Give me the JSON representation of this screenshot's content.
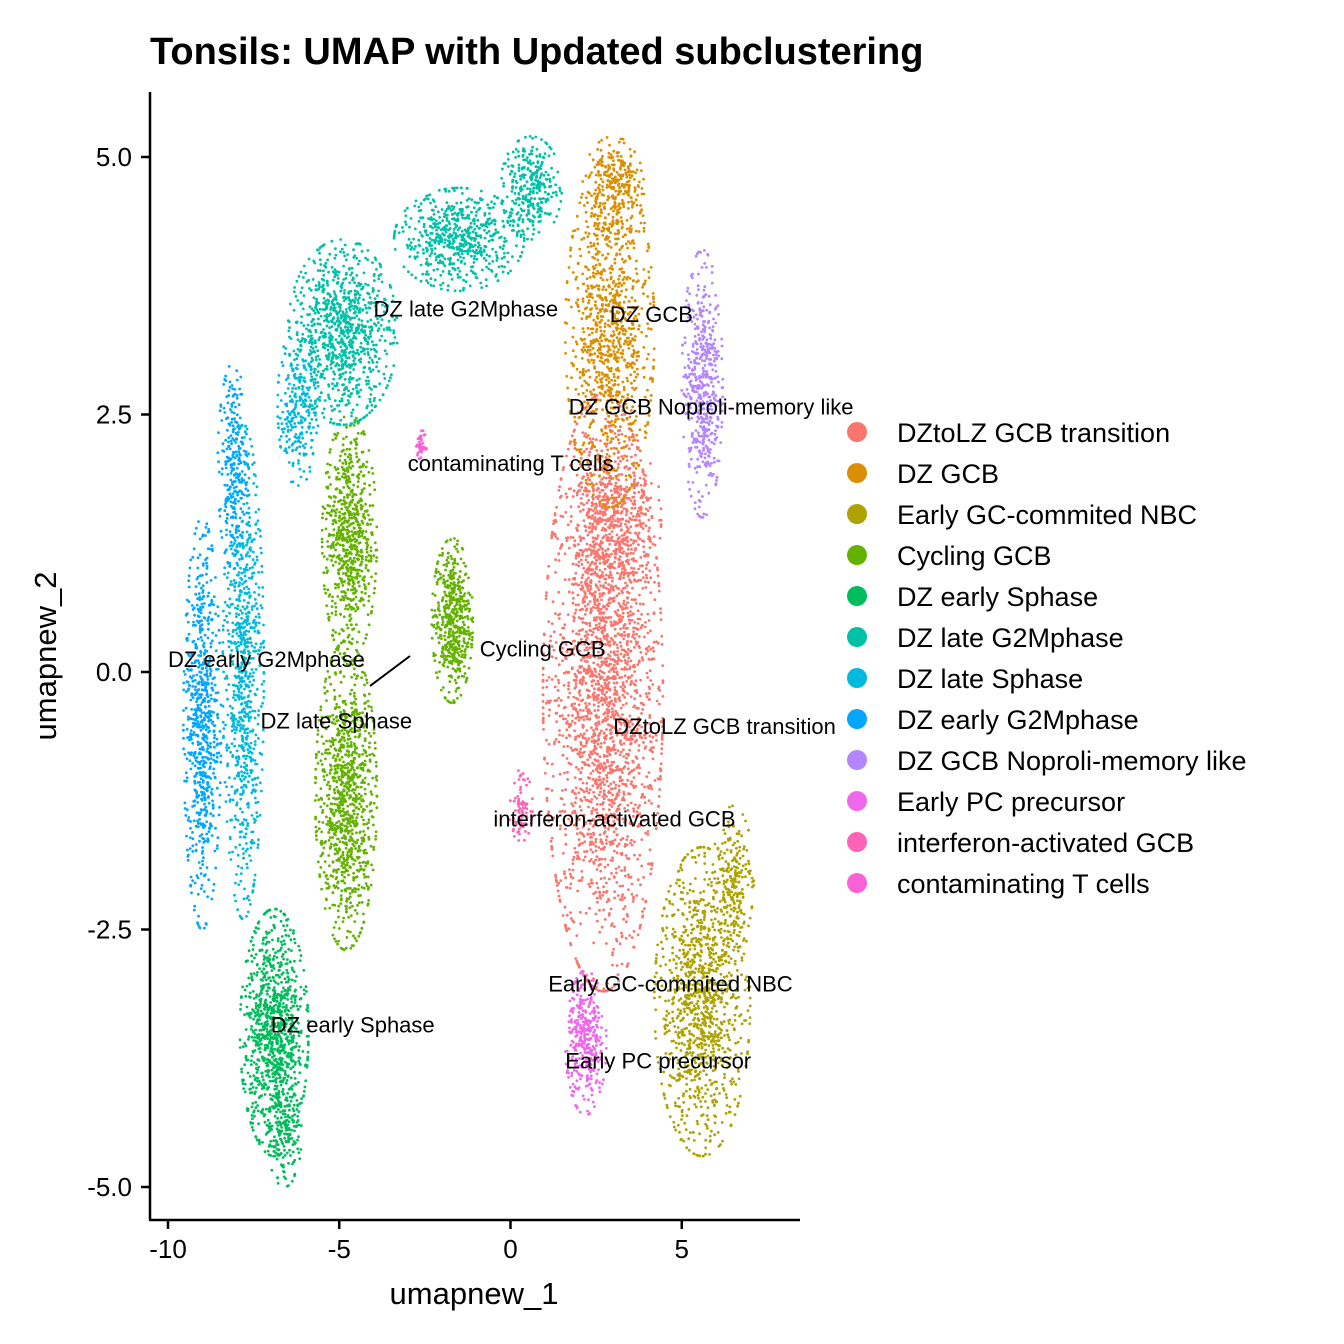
{
  "chart_data": {
    "type": "scatter",
    "title": "Tonsils: UMAP with Updated subclustering",
    "xlabel": "umapnew_1",
    "ylabel": "umapnew_2",
    "xlim": [
      -10.5,
      8.5
    ],
    "ylim": [
      -5.3,
      5.6
    ],
    "xticks": [
      -10,
      -5,
      0,
      5
    ],
    "xtick_labels": [
      "-10",
      "-5",
      "0",
      "5"
    ],
    "yticks": [
      -5,
      -2.5,
      0,
      2.5,
      5
    ],
    "ytick_labels": [
      "-5.0",
      "-2.5",
      "0.0",
      "2.5",
      "5.0"
    ],
    "grid": false,
    "legend_position": "right",
    "clusters": [
      {
        "name": "DZtoLZ GCB transition",
        "color": "#F8766D",
        "label": "DZtoLZ GCB transition",
        "label_xy": [
          3.0,
          -0.6
        ],
        "regions": [
          {
            "c": [
              2.7,
              -0.2
            ],
            "r": [
              1.75,
              2.9
            ],
            "n": 2400
          },
          {
            "c": [
              3.1,
              1.5
            ],
            "r": [
              1.3,
              0.9
            ],
            "n": 500
          }
        ]
      },
      {
        "name": "DZ GCB",
        "color": "#DB8E00",
        "label": "DZ GCB",
        "label_xy": [
          2.9,
          3.4
        ],
        "regions": [
          {
            "c": [
              2.9,
              3.3
            ],
            "r": [
              1.3,
              1.7
            ],
            "n": 1000
          },
          {
            "c": [
              3.0,
              4.7
            ],
            "r": [
              0.9,
              0.5
            ],
            "n": 250
          }
        ]
      },
      {
        "name": "Early GC-commited NBC",
        "color": "#AEA200",
        "label": "Early GC-commited NBC",
        "label_xy": [
          1.1,
          -3.1
        ],
        "regions": [
          {
            "c": [
              5.6,
              -3.2
            ],
            "r": [
              1.4,
              1.5
            ],
            "n": 1100
          },
          {
            "c": [
              6.5,
              -2.0
            ],
            "r": [
              0.6,
              0.7
            ],
            "n": 200
          }
        ]
      },
      {
        "name": "Cycling GCB",
        "color": "#64B200",
        "label": "Cycling GCB",
        "label_xy": [
          -0.9,
          0.15
        ],
        "regions": [
          {
            "c": [
              -4.8,
              -1.2
            ],
            "r": [
              0.9,
              1.5
            ],
            "n": 1000
          },
          {
            "c": [
              -4.7,
              1.3
            ],
            "r": [
              0.8,
              1.2
            ],
            "n": 700
          },
          {
            "c": [
              -1.7,
              0.5
            ],
            "r": [
              0.6,
              0.8
            ],
            "n": 500
          }
        ]
      },
      {
        "name": "DZ early  Sphase",
        "color": "#00BD5C",
        "label": "DZ early  Sphase",
        "label_xy": [
          -7.0,
          -3.5
        ],
        "regions": [
          {
            "c": [
              -6.9,
              -3.5
            ],
            "r": [
              1.0,
              1.2
            ],
            "n": 1000
          },
          {
            "c": [
              -6.6,
              -4.5
            ],
            "r": [
              0.5,
              0.5
            ],
            "n": 150
          }
        ]
      },
      {
        "name": "DZ late G2Mphase",
        "color": "#00C1A7",
        "label": "DZ late G2Mphase",
        "label_xy": [
          -4.0,
          3.45
        ],
        "regions": [
          {
            "c": [
              -4.9,
              3.3
            ],
            "r": [
              1.6,
              0.9
            ],
            "n": 900
          },
          {
            "c": [
              -1.5,
              4.2
            ],
            "r": [
              1.9,
              0.5
            ],
            "n": 600
          },
          {
            "c": [
              0.6,
              4.7
            ],
            "r": [
              0.9,
              0.5
            ],
            "n": 300
          }
        ]
      },
      {
        "name": "DZ late Sphase",
        "color": "#00BADE",
        "label": "DZ late Sphase",
        "label_xy": [
          -7.3,
          -0.55
        ],
        "regions": [
          {
            "c": [
              -7.8,
              0.0
            ],
            "r": [
              0.6,
              2.4
            ],
            "n": 800
          },
          {
            "c": [
              -6.2,
              2.6
            ],
            "r": [
              0.6,
              0.8
            ],
            "n": 250
          }
        ]
      },
      {
        "name": "DZ early G2Mphase",
        "color": "#00A6FF",
        "label": "DZ early G2Mphase",
        "label_xy": [
          -10.0,
          0.05
        ],
        "regions": [
          {
            "c": [
              -9.0,
              -0.5
            ],
            "r": [
              0.55,
              2.0
            ],
            "n": 700
          },
          {
            "c": [
              -8.1,
              2.0
            ],
            "r": [
              0.45,
              1.0
            ],
            "n": 250
          }
        ]
      },
      {
        "name": "DZ GCB Noproli-memory like",
        "color": "#B385FF",
        "label": "DZ GCB Noproli-memory like",
        "label_xy": [
          1.7,
          2.5
        ],
        "regions": [
          {
            "c": [
              5.6,
              2.8
            ],
            "r": [
              0.6,
              1.3
            ],
            "n": 500
          }
        ]
      },
      {
        "name": "Early PC precursor",
        "color": "#EF67EB",
        "label": "Early PC precursor",
        "label_xy": [
          1.6,
          -3.85
        ],
        "regions": [
          {
            "c": [
              2.2,
              -3.6
            ],
            "r": [
              0.6,
              0.7
            ],
            "n": 350
          }
        ]
      },
      {
        "name": "interferon-activated GCB",
        "color": "#FF63B6",
        "label": "interferon-activated GCB",
        "label_xy": [
          -0.5,
          -1.5
        ],
        "regions": [
          {
            "c": [
              0.3,
              -1.3
            ],
            "r": [
              0.35,
              0.35
            ],
            "n": 80
          }
        ]
      },
      {
        "name": "contaminating T cells",
        "color": "#FB61D7",
        "label": "contaminating T cells",
        "label_xy": [
          -3.0,
          1.95
        ],
        "regions": [
          {
            "c": [
              -2.6,
              2.2
            ],
            "r": [
              0.15,
              0.15
            ],
            "n": 40
          }
        ]
      }
    ]
  },
  "legend": {
    "items": [
      {
        "label": "DZtoLZ GCB transition",
        "color": "#F8766D"
      },
      {
        "label": "DZ GCB",
        "color": "#DB8E00"
      },
      {
        "label": "Early GC-commited NBC",
        "color": "#AEA200"
      },
      {
        "label": "Cycling GCB",
        "color": "#64B200"
      },
      {
        "label": "DZ early  Sphase",
        "color": "#00BD5C"
      },
      {
        "label": "DZ late G2Mphase",
        "color": "#00C1A7"
      },
      {
        "label": "DZ late Sphase",
        "color": "#00BADE"
      },
      {
        "label": "DZ early G2Mphase",
        "color": "#00A6FF"
      },
      {
        "label": "DZ GCB Noproli-memory like",
        "color": "#B385FF"
      },
      {
        "label": "Early PC precursor",
        "color": "#EF67EB"
      },
      {
        "label": "interferon-activated GCB",
        "color": "#FF63B6"
      },
      {
        "label": "contaminating T cells",
        "color": "#FB61D7"
      }
    ]
  }
}
